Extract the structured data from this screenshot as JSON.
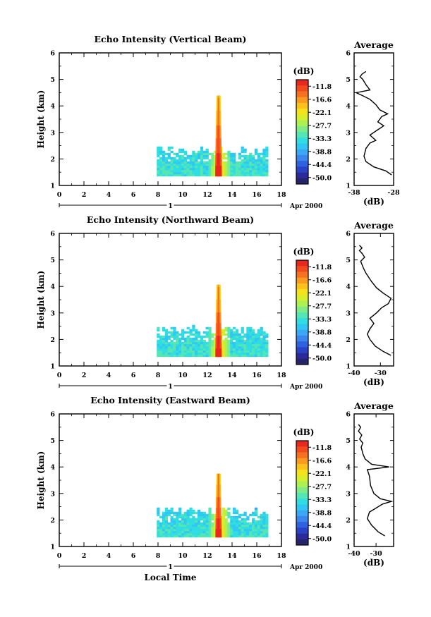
{
  "chart_data": [
    {
      "type": "heatmap",
      "title": "Echo Intensity (Vertical Beam)",
      "xlabel": "",
      "ylabel": "Height (km)",
      "xlim": [
        0,
        18
      ],
      "ylim": [
        1,
        6
      ],
      "x_ticks": [
        "0",
        "2",
        "4",
        "6",
        "8",
        "10",
        "12",
        "14",
        "16",
        "18"
      ],
      "y_ticks": [
        "1",
        "2",
        "3",
        "4",
        "5",
        "6"
      ],
      "date_axis": {
        "day": "1",
        "month_year": "Apr 2000"
      },
      "colorbar": {
        "unit": "(dB)",
        "labels": [
          "-11.8",
          "-16.6",
          "-22.1",
          "-27.7",
          "-33.3",
          "-38.8",
          "-44.4",
          "-50.0"
        ]
      },
      "echo": {
        "x_start": 7.9,
        "x_end": 16.8,
        "y_base": 1.35,
        "top_mean": 2.3,
        "spike_x": 12.9,
        "spike_top": 4.35
      },
      "profile": {
        "title": "Average",
        "xlabel": "(dB)",
        "xlim": [
          -38,
          -28
        ],
        "ylim": [
          1,
          6
        ],
        "x_ticks": [
          "-38",
          "-28"
        ],
        "y_ticks": [
          "1",
          "2",
          "3",
          "4",
          "5",
          "6"
        ],
        "points": [
          [
            -28.5,
            1.4
          ],
          [
            -30,
            1.55
          ],
          [
            -33,
            1.7
          ],
          [
            -35,
            1.9
          ],
          [
            -35.5,
            2.1
          ],
          [
            -35,
            2.4
          ],
          [
            -34,
            2.6
          ],
          [
            -32.5,
            2.7
          ],
          [
            -34,
            2.9
          ],
          [
            -32,
            3.1
          ],
          [
            -30.5,
            3.25
          ],
          [
            -32,
            3.4
          ],
          [
            -31,
            3.6
          ],
          [
            -29.5,
            3.7
          ],
          [
            -31.5,
            3.85
          ],
          [
            -32.5,
            4.05
          ],
          [
            -34,
            4.25
          ],
          [
            -36,
            4.4
          ],
          [
            -37.5,
            4.5
          ],
          [
            -34,
            4.6
          ],
          [
            -35,
            4.8
          ],
          [
            -35.8,
            5.0
          ],
          [
            -36.5,
            5.1
          ],
          [
            -36,
            5.2
          ],
          [
            -35,
            5.3
          ]
        ]
      }
    },
    {
      "type": "heatmap",
      "title": "Echo Intensity (Northward Beam)",
      "xlabel": "",
      "ylabel": "Height (km)",
      "xlim": [
        0,
        18
      ],
      "ylim": [
        1,
        6
      ],
      "x_ticks": [
        "0",
        "2",
        "4",
        "6",
        "8",
        "10",
        "12",
        "14",
        "16",
        "18"
      ],
      "y_ticks": [
        "1",
        "2",
        "3",
        "4",
        "5",
        "6"
      ],
      "date_axis": {
        "day": "1",
        "month_year": "Apr 2000"
      },
      "colorbar": {
        "unit": "(dB)",
        "labels": [
          "-11.8",
          "-16.6",
          "-22.1",
          "-27.7",
          "-33.3",
          "-38.8",
          "-44.4",
          "-50.0"
        ]
      },
      "echo": {
        "x_start": 7.9,
        "x_end": 16.8,
        "y_base": 1.35,
        "top_mean": 2.3,
        "spike_x": 12.9,
        "spike_top": 4.0
      },
      "profile": {
        "title": "Average",
        "xlabel": "(dB)",
        "xlim": [
          -40,
          -25
        ],
        "ylim": [
          1,
          6
        ],
        "x_ticks": [
          "-40",
          "-30"
        ],
        "y_ticks": [
          "1",
          "2",
          "3",
          "4",
          "5",
          "6"
        ],
        "points": [
          [
            -26,
            1.4
          ],
          [
            -29,
            1.55
          ],
          [
            -32,
            1.75
          ],
          [
            -34,
            2.0
          ],
          [
            -35,
            2.2
          ],
          [
            -34,
            2.4
          ],
          [
            -32.5,
            2.6
          ],
          [
            -34,
            2.8
          ],
          [
            -31.5,
            3.0
          ],
          [
            -29.5,
            3.2
          ],
          [
            -27,
            3.35
          ],
          [
            -26,
            3.55
          ],
          [
            -29,
            3.75
          ],
          [
            -31.5,
            3.95
          ],
          [
            -33.5,
            4.2
          ],
          [
            -35.5,
            4.5
          ],
          [
            -36.5,
            4.7
          ],
          [
            -37.5,
            4.95
          ],
          [
            -36,
            5.1
          ],
          [
            -37,
            5.25
          ],
          [
            -38,
            5.35
          ],
          [
            -37,
            5.45
          ],
          [
            -38,
            5.55
          ]
        ]
      }
    },
    {
      "type": "heatmap",
      "title": "Echo Intensity (Eastward Beam)",
      "xlabel": "Local Time",
      "ylabel": "Height (km)",
      "xlim": [
        0,
        18
      ],
      "ylim": [
        1,
        6
      ],
      "x_ticks": [
        "0",
        "2",
        "4",
        "6",
        "8",
        "10",
        "12",
        "14",
        "16",
        "18"
      ],
      "y_ticks": [
        "1",
        "2",
        "3",
        "4",
        "5",
        "6"
      ],
      "date_axis": {
        "day": "1",
        "month_year": "Apr 2000"
      },
      "colorbar": {
        "unit": "(dB)",
        "labels": [
          "-11.8",
          "-16.6",
          "-22.1",
          "-27.7",
          "-33.3",
          "-38.8",
          "-44.4",
          "-50.0"
        ]
      },
      "echo": {
        "x_start": 7.9,
        "x_end": 16.8,
        "y_base": 1.35,
        "top_mean": 2.3,
        "spike_x": 12.9,
        "spike_top": 3.75
      },
      "profile": {
        "title": "Average",
        "xlabel": "(dB)",
        "xlim": [
          -40,
          -22
        ],
        "ylim": [
          1,
          6
        ],
        "x_ticks": [
          "-40",
          "-30"
        ],
        "y_ticks": [
          "1",
          "2",
          "3",
          "4",
          "5",
          "6"
        ],
        "points": [
          [
            -26,
            1.4
          ],
          [
            -29,
            1.55
          ],
          [
            -32,
            1.8
          ],
          [
            -34,
            2.05
          ],
          [
            -33,
            2.3
          ],
          [
            -30,
            2.45
          ],
          [
            -27,
            2.6
          ],
          [
            -23,
            2.7
          ],
          [
            -28,
            2.8
          ],
          [
            -31,
            3.0
          ],
          [
            -32.5,
            3.3
          ],
          [
            -33,
            3.65
          ],
          [
            -34,
            3.9
          ],
          [
            -24,
            4.0
          ],
          [
            -32,
            4.1
          ],
          [
            -35,
            4.3
          ],
          [
            -36,
            4.5
          ],
          [
            -36.8,
            4.75
          ],
          [
            -36,
            4.9
          ],
          [
            -37.5,
            5.05
          ],
          [
            -36.5,
            5.2
          ],
          [
            -38,
            5.35
          ],
          [
            -37,
            5.5
          ],
          [
            -38,
            5.6
          ]
        ]
      }
    }
  ]
}
